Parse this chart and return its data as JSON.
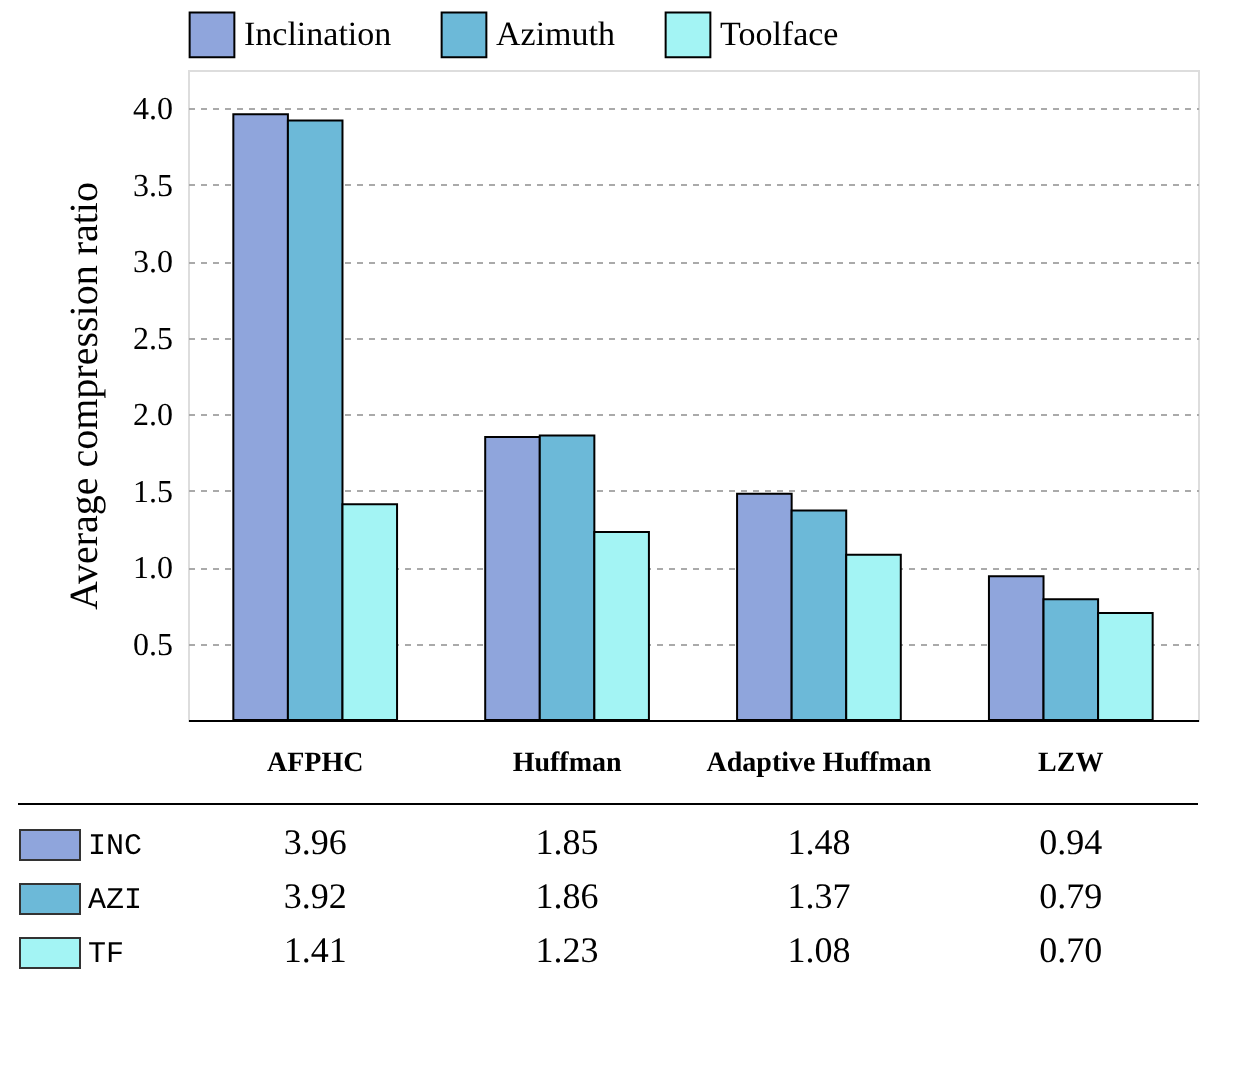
{
  "chart_data": {
    "type": "bar",
    "ylabel": "Average compression ratio",
    "categories": [
      "AFPHC",
      "Huffman",
      "Adaptive Huffman",
      "LZW"
    ],
    "series": [
      {
        "name": "Inclination",
        "color": "#8fa5dc",
        "values": [
          3.96,
          1.85,
          1.48,
          0.94
        ],
        "value_labels": [
          "3.96",
          "1.85",
          "1.48",
          "0.94"
        ]
      },
      {
        "name": "Azimuth",
        "color": "#6cb9d8",
        "values": [
          3.92,
          1.86,
          1.37,
          0.79
        ],
        "value_labels": [
          "3.92",
          "1.86",
          "1.37",
          "0.79"
        ]
      },
      {
        "name": "Toolface",
        "color": "#a3f4f4",
        "values": [
          1.41,
          1.23,
          1.08,
          0.7
        ],
        "value_labels": [
          "1.41",
          "1.23",
          "1.08",
          "0.70"
        ]
      }
    ],
    "annotations": [
      "INC",
      "AZI",
      "TF"
    ],
    "ylim": [
      0,
      4.25
    ],
    "yticks": [
      0.5,
      {
        "value": 1,
        "label": "1.0"
      },
      1.5,
      {
        "value": 2,
        "label": "2.0"
      },
      2.5,
      {
        "value": 3,
        "label": "3.0"
      },
      3.5,
      {
        "value": 4,
        "label": "4.0"
      }
    ],
    "grid": "y",
    "legend": "top"
  }
}
